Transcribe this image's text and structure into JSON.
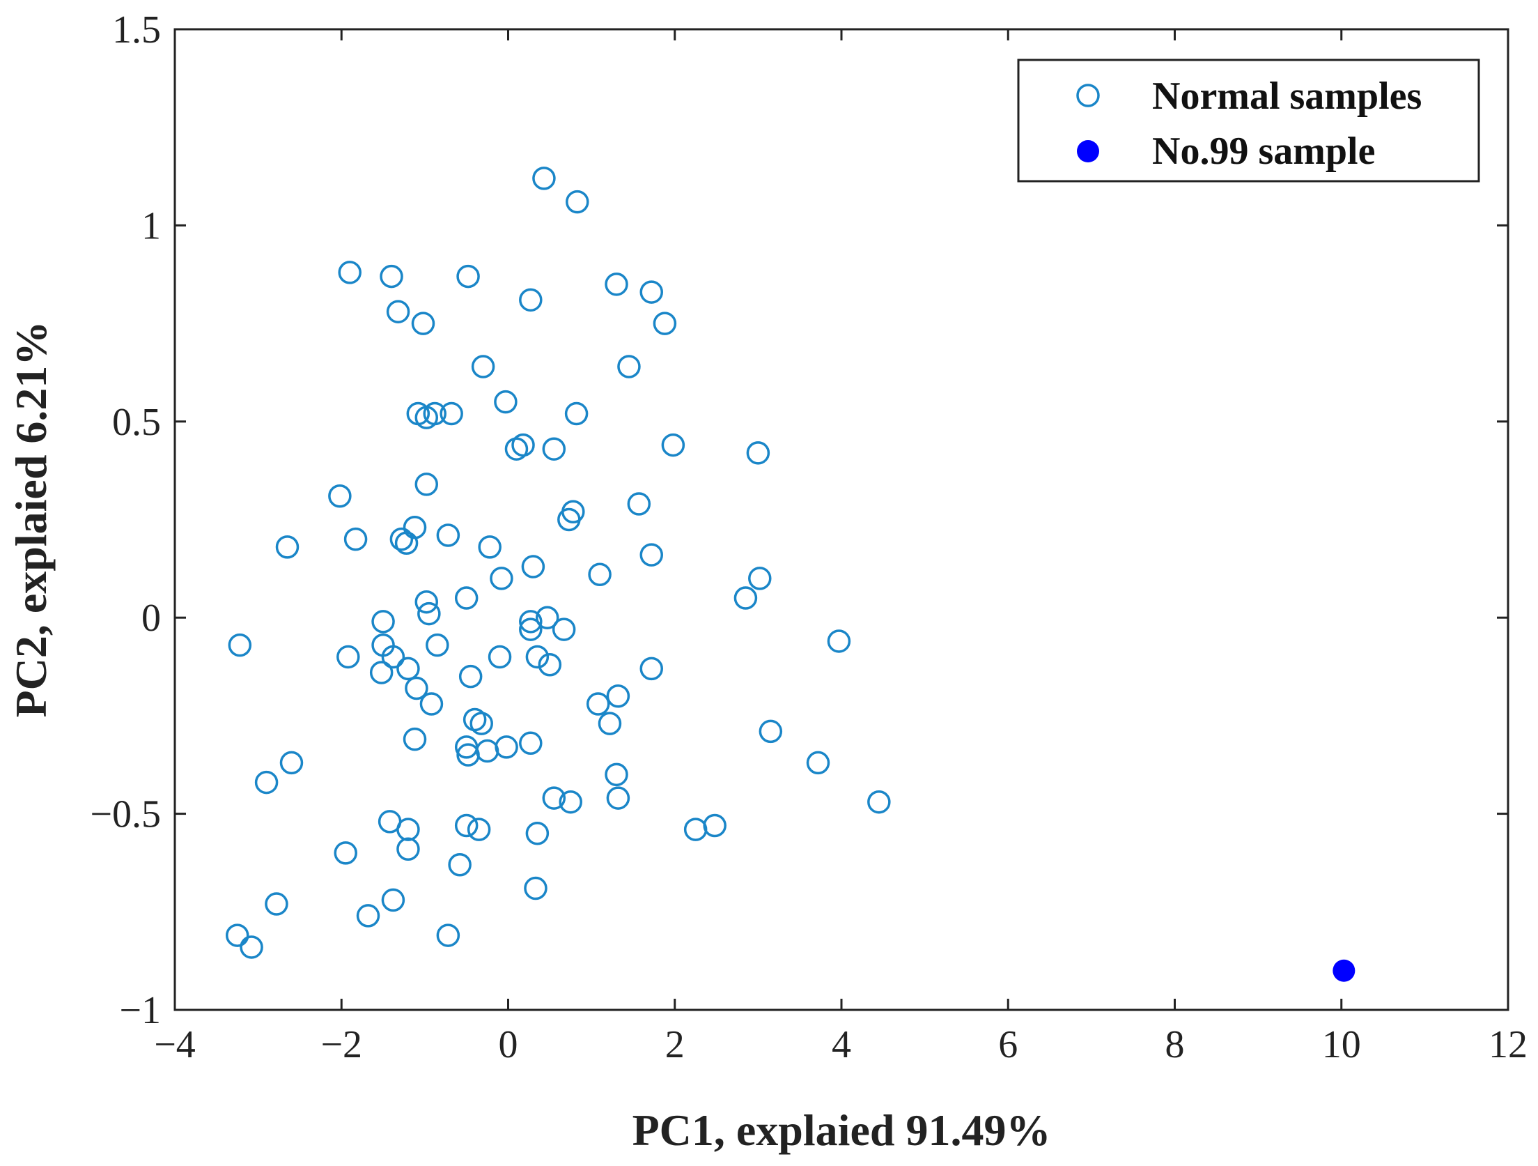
{
  "chart_data": {
    "type": "scatter",
    "title": "",
    "xlabel": "PC1, explaied 91.49%",
    "ylabel": "PC2, explaied 6.21%",
    "xlim": [
      -4,
      12
    ],
    "ylim": [
      -1,
      1.5
    ],
    "xticks": [
      -4,
      -2,
      0,
      2,
      4,
      6,
      8,
      10,
      12
    ],
    "xtick_labels": [
      "−4",
      "−2",
      "0",
      "2",
      "4",
      "6",
      "8",
      "10",
      "12"
    ],
    "yticks": [
      -1,
      -0.5,
      0,
      0.5,
      1,
      1.5
    ],
    "ytick_labels": [
      "−1",
      "−0.5",
      "0",
      "0.5",
      "1",
      "1.5"
    ],
    "grid": false,
    "legend_position": "top-right",
    "colors": {
      "normal": "#1a86c8",
      "outlier": "#0000ff",
      "axis": "#222222"
    },
    "series": [
      {
        "name": "Normal samples",
        "marker": "open-circle",
        "points": [
          [
            0.43,
            1.12
          ],
          [
            0.83,
            1.06
          ],
          [
            -1.9,
            0.88
          ],
          [
            -1.4,
            0.87
          ],
          [
            -0.48,
            0.87
          ],
          [
            -1.32,
            0.78
          ],
          [
            -1.02,
            0.75
          ],
          [
            0.27,
            0.81
          ],
          [
            1.3,
            0.85
          ],
          [
            1.72,
            0.83
          ],
          [
            1.88,
            0.75
          ],
          [
            -0.3,
            0.64
          ],
          [
            1.45,
            0.64
          ],
          [
            -0.03,
            0.55
          ],
          [
            -1.08,
            0.52
          ],
          [
            -0.98,
            0.51
          ],
          [
            -0.88,
            0.52
          ],
          [
            -0.68,
            0.52
          ],
          [
            0.82,
            0.52
          ],
          [
            0.1,
            0.43
          ],
          [
            0.18,
            0.44
          ],
          [
            0.55,
            0.43
          ],
          [
            1.98,
            0.44
          ],
          [
            3.0,
            0.42
          ],
          [
            -2.02,
            0.31
          ],
          [
            -0.98,
            0.34
          ],
          [
            1.57,
            0.29
          ],
          [
            0.78,
            0.27
          ],
          [
            0.73,
            0.25
          ],
          [
            -2.65,
            0.18
          ],
          [
            -1.83,
            0.2
          ],
          [
            -1.28,
            0.2
          ],
          [
            -1.12,
            0.23
          ],
          [
            -1.22,
            0.19
          ],
          [
            -0.72,
            0.21
          ],
          [
            -0.22,
            0.18
          ],
          [
            0.3,
            0.13
          ],
          [
            1.72,
            0.16
          ],
          [
            1.1,
            0.11
          ],
          [
            -0.08,
            0.1
          ],
          [
            3.02,
            0.1
          ],
          [
            2.85,
            0.05
          ],
          [
            -0.98,
            0.04
          ],
          [
            -0.5,
            0.05
          ],
          [
            -0.95,
            0.01
          ],
          [
            -1.5,
            -0.01
          ],
          [
            0.27,
            -0.01
          ],
          [
            0.47,
            0.0
          ],
          [
            0.27,
            -0.03
          ],
          [
            0.67,
            -0.03
          ],
          [
            -3.22,
            -0.07
          ],
          [
            -1.92,
            -0.1
          ],
          [
            -1.5,
            -0.07
          ],
          [
            -1.38,
            -0.1
          ],
          [
            -0.85,
            -0.07
          ],
          [
            -0.1,
            -0.1
          ],
          [
            0.35,
            -0.1
          ],
          [
            3.97,
            -0.06
          ],
          [
            -1.52,
            -0.14
          ],
          [
            -1.2,
            -0.13
          ],
          [
            -1.1,
            -0.18
          ],
          [
            -0.45,
            -0.15
          ],
          [
            0.5,
            -0.12
          ],
          [
            1.72,
            -0.13
          ],
          [
            -0.92,
            -0.22
          ],
          [
            1.08,
            -0.22
          ],
          [
            1.32,
            -0.2
          ],
          [
            -0.4,
            -0.26
          ],
          [
            -0.32,
            -0.27
          ],
          [
            1.22,
            -0.27
          ],
          [
            3.15,
            -0.29
          ],
          [
            -1.12,
            -0.31
          ],
          [
            0.27,
            -0.32
          ],
          [
            -0.5,
            -0.33
          ],
          [
            -0.48,
            -0.35
          ],
          [
            -0.25,
            -0.34
          ],
          [
            -0.02,
            -0.33
          ],
          [
            -2.9,
            -0.42
          ],
          [
            -2.6,
            -0.37
          ],
          [
            3.72,
            -0.37
          ],
          [
            1.3,
            -0.4
          ],
          [
            0.55,
            -0.46
          ],
          [
            0.75,
            -0.47
          ],
          [
            1.32,
            -0.46
          ],
          [
            4.45,
            -0.47
          ],
          [
            -1.42,
            -0.52
          ],
          [
            -1.2,
            -0.54
          ],
          [
            -0.5,
            -0.53
          ],
          [
            -0.35,
            -0.54
          ],
          [
            0.35,
            -0.55
          ],
          [
            2.25,
            -0.54
          ],
          [
            2.48,
            -0.53
          ],
          [
            -1.95,
            -0.6
          ],
          [
            -1.2,
            -0.59
          ],
          [
            -0.58,
            -0.63
          ],
          [
            -2.78,
            -0.73
          ],
          [
            -1.68,
            -0.76
          ],
          [
            -1.38,
            -0.72
          ],
          [
            0.33,
            -0.69
          ],
          [
            -3.25,
            -0.81
          ],
          [
            -3.08,
            -0.84
          ],
          [
            -0.72,
            -0.81
          ]
        ]
      },
      {
        "name": "No.99 sample",
        "marker": "filled-circle",
        "points": [
          [
            10.03,
            -0.9
          ]
        ]
      }
    ]
  }
}
